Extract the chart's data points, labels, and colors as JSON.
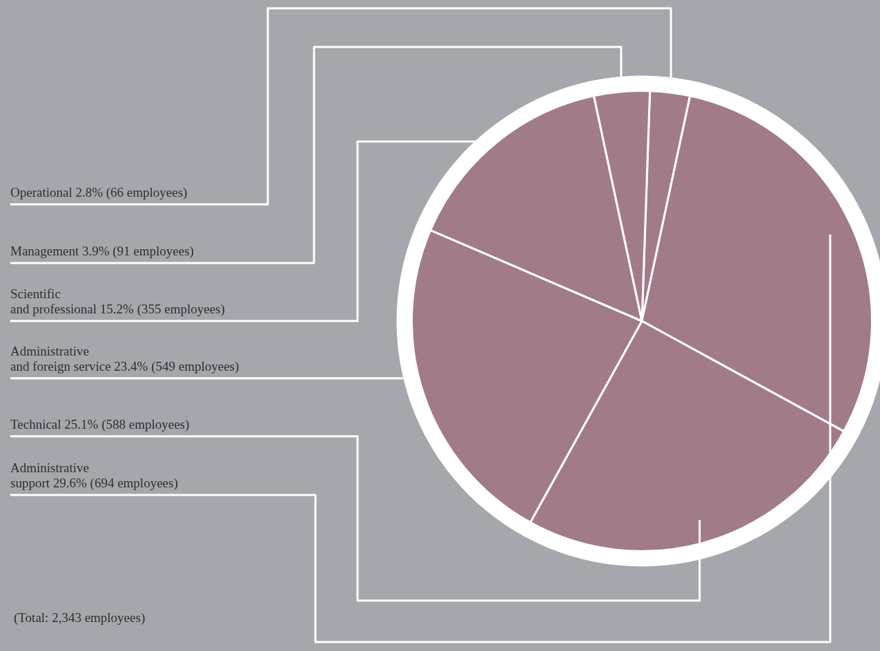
{
  "chart_data": {
    "type": "pie",
    "categories": [
      "Operational",
      "Administrative\nsupport",
      "Technical",
      "Administrative\nand foreign service",
      "Scientific\nand professional",
      "Management"
    ],
    "values": [
      2.8,
      29.6,
      25.1,
      23.4,
      15.2,
      3.9
    ],
    "value_labels": [
      "2.8% (66 employees)",
      "29.6% (694 employees)",
      "25.1% (588 employees)",
      "23.4% (549 employees)",
      "15.2% (355 employees)",
      "3.9% (91 employees)"
    ],
    "colors": [
      "#a27b88",
      "#a27b88",
      "#a27b88",
      "#a27b88",
      "#a27b88",
      "#a27b88"
    ],
    "annotations": [
      "(Total: 2,343 employees)"
    ],
    "legend": false
  }
}
